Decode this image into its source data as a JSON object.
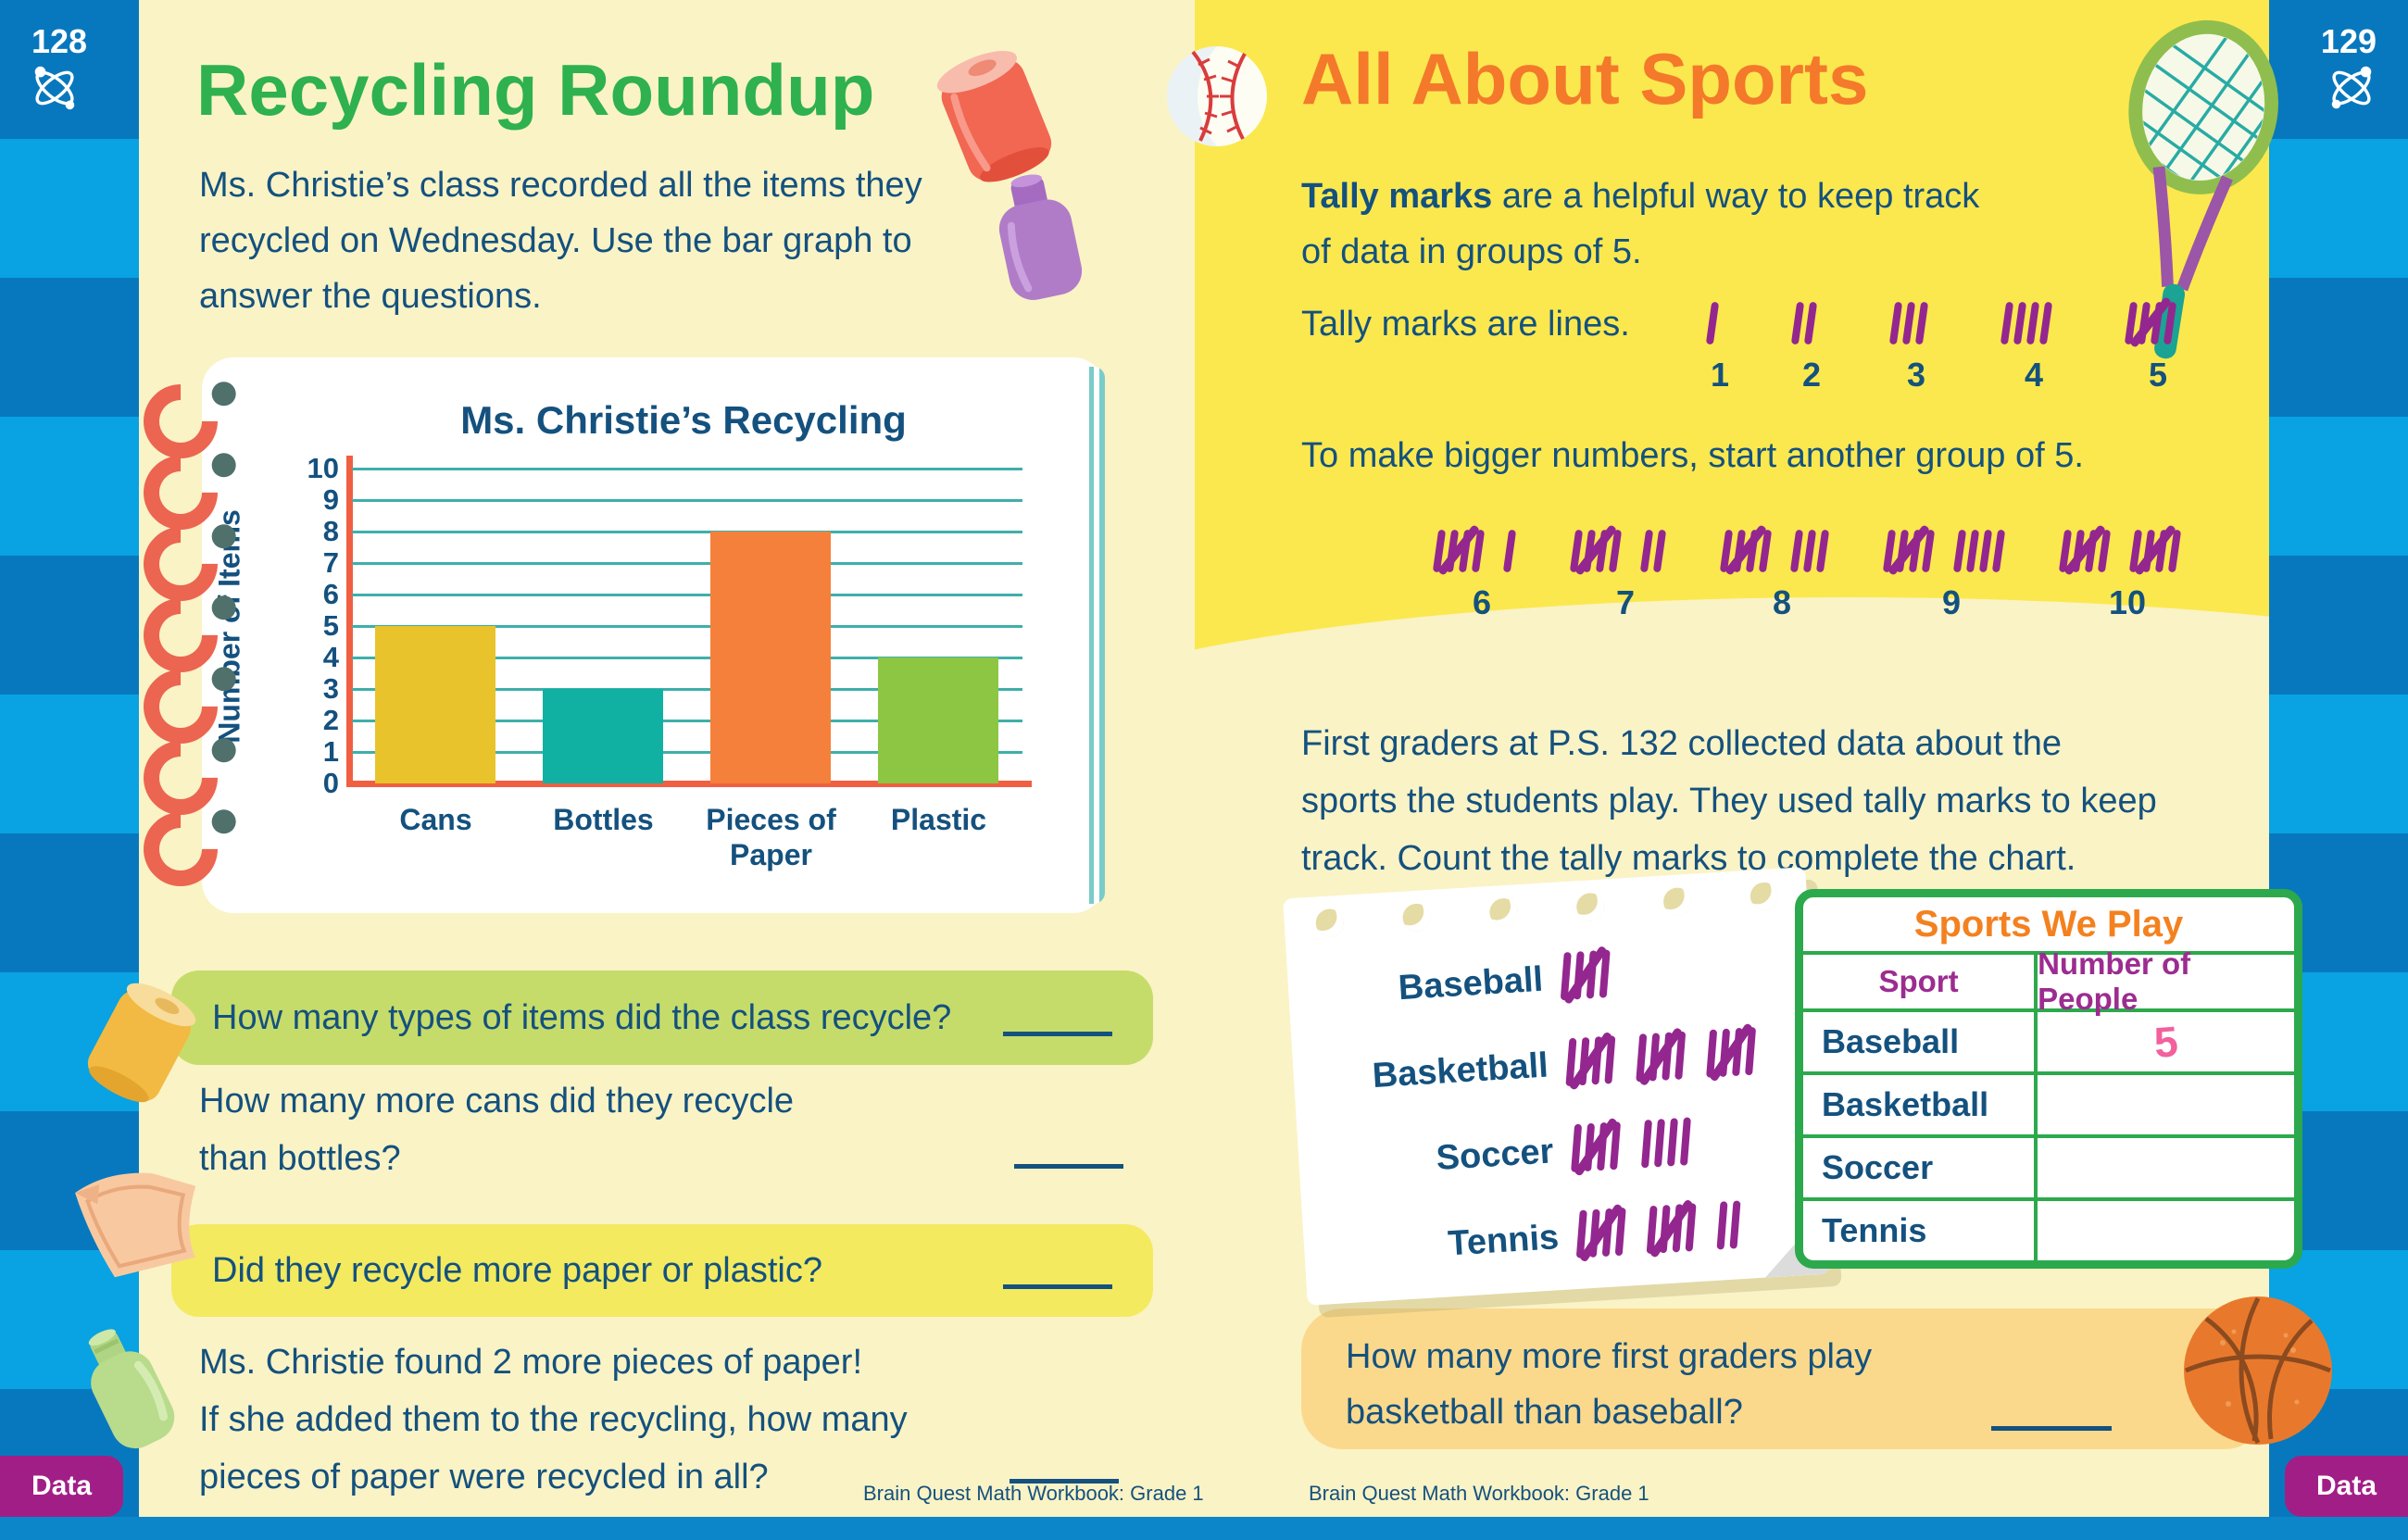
{
  "left_page": {
    "page_number": "128",
    "title": "Recycling Roundup",
    "intro_lines": [
      "Ms. Christie’s class recorded all the items they",
      "recycled on Wednesday. Use the bar graph to",
      "answer the questions."
    ],
    "questions": [
      {
        "lines": [
          "How many types of items did the class recycle?"
        ],
        "highlight": "green"
      },
      {
        "lines": [
          "How many more cans did they recycle",
          "than bottles?"
        ],
        "highlight": "none"
      },
      {
        "lines": [
          "Did they recycle more paper or plastic?"
        ],
        "highlight": "yellow"
      },
      {
        "lines": [
          "Ms. Christie found 2 more pieces of paper!",
          "If she added them to the recycling, how many",
          "pieces of paper were recycled in all?"
        ],
        "highlight": "none"
      }
    ],
    "footer": "Brain Quest Math Workbook: Grade 1",
    "tab_label": "Data"
  },
  "chart_data": {
    "type": "bar",
    "title": "Ms. Christie’s Recycling",
    "ylabel": "Number of Items",
    "xlabel": "",
    "categories": [
      "Cans",
      "Bottles",
      "Pieces of\nPaper",
      "Plastic"
    ],
    "values": [
      5,
      3,
      8,
      4
    ],
    "colors": [
      "#E9C32B",
      "#10B1A3",
      "#F5803C",
      "#8CC643"
    ],
    "ylim": [
      0,
      10
    ],
    "ytick_step": 1,
    "grid": true,
    "legend": "none"
  },
  "right_page": {
    "page_number": "129",
    "title": "All About Sports",
    "intro_bold": "Tally marks",
    "intro_rest": " are a helpful way to keep track",
    "intro_line2": "of data in groups of 5.",
    "lines_label": "Tally marks are lines.",
    "tally_row1": {
      "counts": [
        1,
        2,
        3,
        4,
        5
      ]
    },
    "bigger_label": "To make bigger numbers, start another group of 5.",
    "tally_row2": {
      "counts": [
        6,
        7,
        8,
        9,
        10
      ]
    },
    "paragraph_lines": [
      "First graders at P.S. 132 collected data about the",
      "sports the students play. They used tally marks to keep",
      "track. Count the tally marks to complete the chart."
    ],
    "notepad": [
      {
        "sport": "Baseball",
        "tally": 5
      },
      {
        "sport": "Basketball",
        "tally": 15
      },
      {
        "sport": "Soccer",
        "tally": 9
      },
      {
        "sport": "Tennis",
        "tally": 12
      }
    ],
    "table": {
      "title": "Sports We Play",
      "columns": [
        "Sport",
        "Number of People"
      ],
      "rows": [
        {
          "sport": "Baseball",
          "value": "5"
        },
        {
          "sport": "Basketball",
          "value": ""
        },
        {
          "sport": "Soccer",
          "value": ""
        },
        {
          "sport": "Tennis",
          "value": ""
        }
      ]
    },
    "question_lines": [
      "How many more first graders play",
      "basketball than baseball?"
    ],
    "footer": "Brain Quest Math Workbook: Grade 1",
    "tab_label": "Data"
  },
  "colors": {
    "navy_text": "#14517E",
    "page_pale_yellow": "#FAF3C6",
    "page_bright_yellow": "#FBE84E",
    "left_title_green": "#2EB14E",
    "right_title_orange": "#F4792B",
    "tally_purple": "#93278F",
    "table_green": "#2CA94C",
    "table_header_purple": "#9C2C90",
    "answer_pink": "#F2609E",
    "axis_red": "#F15F42",
    "gridline_teal": "#3FAFA9",
    "border_blue_dark": "#0878BE",
    "border_blue_light": "#09A2E2",
    "q_green_box": "#C6DC6A",
    "q_yellow_box": "#F3EA5F",
    "q_orange_box": "#FBD98C",
    "data_tab_purple": "#A21E87"
  }
}
